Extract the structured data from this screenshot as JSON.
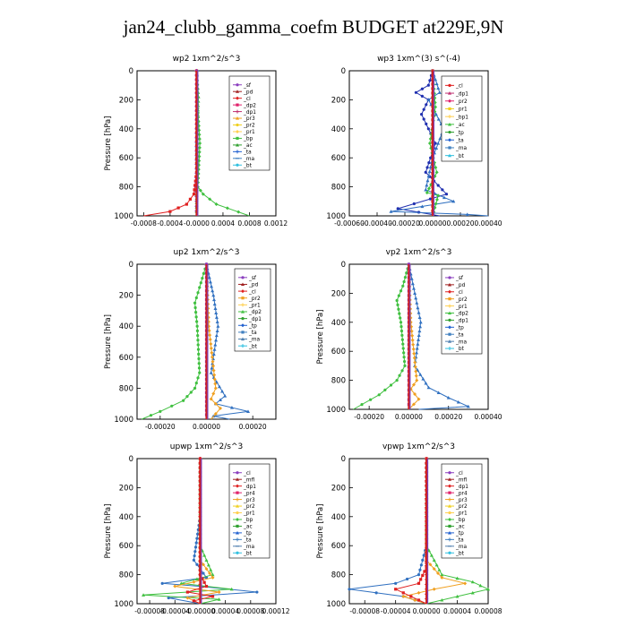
{
  "title": "jan24_clubb_gamma_coefm  BUDGET at229E,9N",
  "chart_data": [
    {
      "type": "line",
      "title": "wp2   1xm^2/s^3",
      "ylabel": "Pressure [hPa]",
      "ylim": [
        1000,
        0
      ],
      "xlim": [
        -0.0009,
        0.0012
      ],
      "xticks": [
        "-0.0008",
        "-0.0004",
        "-0.0000",
        "0.0004",
        "0.0008",
        "0.0012"
      ],
      "xtick_values": [
        -0.0008,
        -0.0004,
        0,
        0.0004,
        0.0008,
        0.0012
      ],
      "yticks": [
        0,
        200,
        400,
        600,
        800,
        1000
      ],
      "legend": [
        "_sf",
        "_pd",
        "_cl",
        "_dp2",
        "_dp1",
        "_pr3",
        "_pr2",
        "_pr1",
        "_bp",
        "_ac",
        "_ta",
        "_ma",
        "_bt"
      ],
      "legend_colors": [
        "#8b3fbf",
        "#a02020",
        "#e02020",
        "#e0206a",
        "#c03070",
        "#f0a020",
        "#f0d020",
        "#ffd050",
        "#40c040",
        "#30a030",
        "#2060d0",
        "#4080c0",
        "#30c0e0"
      ],
      "series": [
        {
          "name": "_bt",
          "x": [
            1e-05,
            1e-05,
            0.0,
            0.0,
            0.0,
            0.0,
            0.0
          ],
          "y": [
            0,
            200,
            400,
            600,
            800,
            900,
            1000
          ]
        },
        {
          "name": "_ac",
          "x": [
            0.0,
            3e-05,
            2e-05,
            1e-05,
            0.0,
            0.0
          ],
          "y": [
            0,
            180,
            300,
            500,
            700,
            1000
          ]
        },
        {
          "name": "_bp",
          "x": [
            0.0,
            1e-05,
            5e-05,
            2e-05,
            0.0001,
            0.0003,
            0.0008
          ],
          "y": [
            0,
            200,
            500,
            800,
            850,
            920,
            1000
          ]
        },
        {
          "name": "_dp1",
          "x": [
            0.0,
            0.0,
            -4e-05,
            -0.00015,
            -0.0004,
            -0.0008
          ],
          "y": [
            0,
            700,
            850,
            920,
            970,
            1000
          ]
        },
        {
          "name": "_pd",
          "x": [
            0.0,
            0.0,
            0.0,
            0.0
          ],
          "y": [
            0,
            400,
            800,
            1000
          ]
        }
      ]
    },
    {
      "type": "line",
      "title": "wp3   1xm^(3) s^(-4)",
      "ylabel": "",
      "ylim": [
        1000,
        0
      ],
      "xlim": [
        -0.0006,
        0.0004
      ],
      "xticks": [
        "-0.00060",
        "-0.00040",
        "-0.00020",
        "0.00000",
        "0.00020",
        "0.00040"
      ],
      "xtick_values": [
        -0.0006,
        -0.0004,
        -0.0002,
        0,
        0.0002,
        0.0004
      ],
      "yticks": [
        0,
        200,
        400,
        600,
        800,
        1000
      ],
      "legend": [
        "_cl",
        "_dp1",
        "_pr2",
        "_pr1",
        "_bp1",
        "_ac",
        "_tp",
        "_ta",
        "_ma",
        "_bt"
      ],
      "legend_colors": [
        "#e02020",
        "#c03070",
        "#e0206a",
        "#f0d020",
        "#ffd050",
        "#40c040",
        "#30a030",
        "#2060d0",
        "#4080c0",
        "#30c0e0"
      ],
      "series": [
        {
          "name": "_ta",
          "x": [
            0.0,
            -3e-05,
            -0.00012,
            -3e-05,
            -8e-05,
            2e-05,
            -5e-05,
            0.0001,
            -0.00025,
            5e-05
          ],
          "y": [
            0,
            100,
            150,
            200,
            300,
            500,
            700,
            850,
            950,
            1000
          ]
        },
        {
          "name": "_tp",
          "x": [
            0.0,
            5e-05,
            -3e-05,
            8e-05,
            0.0,
            -5e-05,
            0.00015,
            -0.0003,
            0.00025,
            0.0004
          ],
          "y": [
            0,
            150,
            200,
            400,
            600,
            820,
            900,
            970,
            990,
            1000
          ]
        },
        {
          "name": "_ac",
          "x": [
            0.0,
            2e-05,
            -2e-05,
            3e-05,
            -4e-05,
            4e-05,
            0.0
          ],
          "y": [
            0,
            250,
            500,
            700,
            840,
            860,
            1000
          ]
        },
        {
          "name": "_cl",
          "x": [
            0.0,
            0.0,
            0.0,
            0.0
          ],
          "y": [
            0,
            400,
            800,
            1000
          ]
        }
      ]
    },
    {
      "type": "line",
      "title": "up2   1xm^2/s^3",
      "ylabel": "Pressure [hPa]",
      "ylim": [
        1000,
        0
      ],
      "xlim": [
        -0.0003,
        0.0003
      ],
      "xticks": [
        "-0.00020",
        "0.00000",
        "0.00020"
      ],
      "xtick_values": [
        -0.0002,
        0,
        0.0002
      ],
      "yticks": [
        0,
        200,
        400,
        600,
        800,
        1000
      ],
      "legend": [
        "_sf",
        "_pd",
        "_cl",
        "_pr2",
        "_pr1",
        "_dp2",
        "_dp1",
        "_tp",
        "_ta",
        "_ma",
        "_bt"
      ],
      "legend_colors": [
        "#8b3fbf",
        "#a02020",
        "#e02020",
        "#f0a020",
        "#ffd050",
        "#40c040",
        "#30a030",
        "#2060d0",
        "#4080c0",
        "#5080b0",
        "#30c0e0"
      ],
      "series": [
        {
          "name": "_dp2",
          "x": [
            0.0,
            -3e-05,
            -5e-05,
            -4e-05,
            -3e-05,
            -5e-05,
            -0.0001,
            -0.0002,
            -0.00028
          ],
          "y": [
            0,
            150,
            250,
            400,
            700,
            800,
            880,
            950,
            1000
          ]
        },
        {
          "name": "_tp",
          "x": [
            0.0,
            3e-05,
            5e-05,
            2e-05,
            8e-05,
            4e-05,
            0.00018,
            3e-05,
            0.0001
          ],
          "y": [
            0,
            200,
            400,
            700,
            850,
            900,
            950,
            980,
            1000
          ]
        },
        {
          "name": "_pr2",
          "x": [
            0.0,
            1e-05,
            4e-05,
            2e-05,
            6e-05,
            2e-05
          ],
          "y": [
            0,
            400,
            800,
            870,
            930,
            1000
          ]
        },
        {
          "name": "_pd",
          "x": [
            0.0,
            0.0,
            0.0,
            0.0
          ],
          "y": [
            0,
            400,
            800,
            1000
          ]
        }
      ]
    },
    {
      "type": "line",
      "title": "vp2   1xm^2/s^3",
      "ylabel": "Pressure [hPa]",
      "ylim": [
        1000,
        0
      ],
      "xlim": [
        -0.0003,
        0.0004
      ],
      "xticks": [
        "-0.00020",
        "0.00000",
        "0.00020",
        "0.00040"
      ],
      "xtick_values": [
        -0.0002,
        0,
        0.0002,
        0.0004
      ],
      "yticks": [
        0,
        200,
        400,
        600,
        800,
        1000
      ],
      "legend": [
        "_sf",
        "_pd",
        "_cl",
        "_pr2",
        "_pr1",
        "_dp2",
        "_dp1",
        "_tp",
        "_ta",
        "_ma",
        "_bt"
      ],
      "legend_colors": [
        "#8b3fbf",
        "#a02020",
        "#e02020",
        "#f0a020",
        "#ffd050",
        "#40c040",
        "#30a030",
        "#2060d0",
        "#4080c0",
        "#5080b0",
        "#30c0e0"
      ],
      "series": [
        {
          "name": "_dp2",
          "x": [
            0.0,
            -3e-05,
            -6e-05,
            -4e-05,
            -2e-05,
            -6e-05,
            -0.00015,
            -0.00028
          ],
          "y": [
            0,
            150,
            250,
            400,
            700,
            800,
            900,
            1000
          ]
        },
        {
          "name": "_tp",
          "x": [
            0.0,
            3e-05,
            6e-05,
            3e-05,
            0.0001,
            0.0002,
            0.0003,
            5e-05
          ],
          "y": [
            0,
            200,
            400,
            700,
            850,
            920,
            980,
            1000
          ]
        },
        {
          "name": "_pr2",
          "x": [
            0.0,
            1e-05,
            4e-05,
            1e-05,
            5e-05,
            0.0
          ],
          "y": [
            0,
            400,
            800,
            860,
            930,
            1000
          ]
        },
        {
          "name": "_pd",
          "x": [
            0.0,
            0.0,
            0.0,
            0.0
          ],
          "y": [
            0,
            400,
            800,
            1000
          ]
        }
      ]
    },
    {
      "type": "line",
      "title": "upwp   1xm^2/s^3",
      "ylabel": "Pressure [hPa]",
      "ylim": [
        1000,
        0
      ],
      "xlim": [
        -0.0001,
        0.00012
      ],
      "xticks": [
        "-0.00008",
        "-0.00004",
        "-0.00000",
        "0.00004",
        "0.00008",
        "0.00012"
      ],
      "xtick_values": [
        -8e-05,
        -4e-05,
        0,
        4e-05,
        8e-05,
        0.00012
      ],
      "yticks": [
        0,
        200,
        400,
        600,
        800,
        1000
      ],
      "legend": [
        "_cl",
        "_mfl",
        "_dp1",
        "_pr4",
        "_pr3",
        "_pr2",
        "_pr1",
        "_bp",
        "_ac",
        "_tp",
        "_ta",
        "_ma",
        "_bt"
      ],
      "legend_colors": [
        "#8b3fbf",
        "#a02020",
        "#e02020",
        "#e0206a",
        "#f0a020",
        "#f0d020",
        "#ffd050",
        "#40c040",
        "#30a030",
        "#2060d0",
        "#4080c0",
        "#5080b0",
        "#30c0e0"
      ],
      "series": [
        {
          "name": "_tp",
          "x": [
            0.0,
            0.0,
            -1e-05,
            1e-05,
            -6e-05,
            0.0,
            9e-05,
            -5e-05,
            0.0
          ],
          "y": [
            0,
            400,
            700,
            820,
            860,
            880,
            920,
            960,
            1000
          ]
        },
        {
          "name": "_ac",
          "x": [
            0.0,
            0.0,
            2e-05,
            -3e-05,
            5e-05,
            -9e-05,
            3e-05,
            0.0
          ],
          "y": [
            0,
            600,
            800,
            860,
            900,
            940,
            970,
            1000
          ]
        },
        {
          "name": "_pr2",
          "x": [
            0.0,
            0.0,
            2e-05,
            -4e-05,
            3e-05,
            -2e-05,
            0.0
          ],
          "y": [
            0,
            700,
            820,
            880,
            920,
            960,
            1000
          ]
        },
        {
          "name": "_dp1",
          "x": [
            0.0,
            0.0,
            1e-05,
            -2e-05,
            2e-05,
            -1e-05,
            0.0
          ],
          "y": [
            0,
            800,
            880,
            920,
            950,
            980,
            1000
          ]
        },
        {
          "name": "_cl",
          "x": [
            0.0,
            0.0,
            0.0,
            0.0
          ],
          "y": [
            0,
            400,
            800,
            1000
          ]
        }
      ]
    },
    {
      "type": "line",
      "title": "vpwp   1xm^2/s^3",
      "ylabel": "Pressure [hPa]",
      "ylim": [
        1000,
        0
      ],
      "xlim": [
        -0.0001,
        8e-05
      ],
      "xticks": [
        "-0.00008",
        "-0.00004",
        "0.00000",
        "0.00004",
        "0.00008"
      ],
      "xtick_values": [
        -8e-05,
        -4e-05,
        0,
        4e-05,
        8e-05
      ],
      "yticks": [
        0,
        200,
        400,
        600,
        800,
        1000
      ],
      "legend": [
        "_cl",
        "_mfl",
        "_dp1",
        "_pr4",
        "_pr3",
        "_pr2",
        "_pr1",
        "_bp",
        "_ac",
        "_tp",
        "_ta",
        "_ma",
        "_bt"
      ],
      "legend_colors": [
        "#8b3fbf",
        "#a02020",
        "#e02020",
        "#e0206a",
        "#f0a020",
        "#f0d020",
        "#ffd050",
        "#40c040",
        "#30a030",
        "#2060d0",
        "#4080c0",
        "#5080b0",
        "#30c0e0"
      ],
      "series": [
        {
          "name": "_tp",
          "x": [
            0.0,
            0.0,
            -1e-05,
            -4e-05,
            -0.0001,
            -3e-05,
            0.0
          ],
          "y": [
            0,
            600,
            800,
            860,
            900,
            950,
            1000
          ]
        },
        {
          "name": "_ac",
          "x": [
            0.0,
            0.0,
            2e-05,
            6e-05,
            8e-05,
            4e-05,
            0.0
          ],
          "y": [
            0,
            600,
            800,
            850,
            900,
            950,
            1000
          ]
        },
        {
          "name": "_pr2",
          "x": [
            0.0,
            0.0,
            2e-05,
            5e-05,
            1e-05,
            -3e-05,
            0.0
          ],
          "y": [
            0,
            700,
            820,
            860,
            900,
            950,
            1000
          ]
        },
        {
          "name": "_dp1",
          "x": [
            0.0,
            0.0,
            -1e-05,
            -4e-05,
            -2e-05,
            0.0
          ],
          "y": [
            0,
            750,
            860,
            900,
            950,
            1000
          ]
        },
        {
          "name": "_cl",
          "x": [
            0.0,
            0.0,
            0.0,
            0.0
          ],
          "y": [
            0,
            400,
            800,
            1000
          ]
        }
      ]
    }
  ]
}
